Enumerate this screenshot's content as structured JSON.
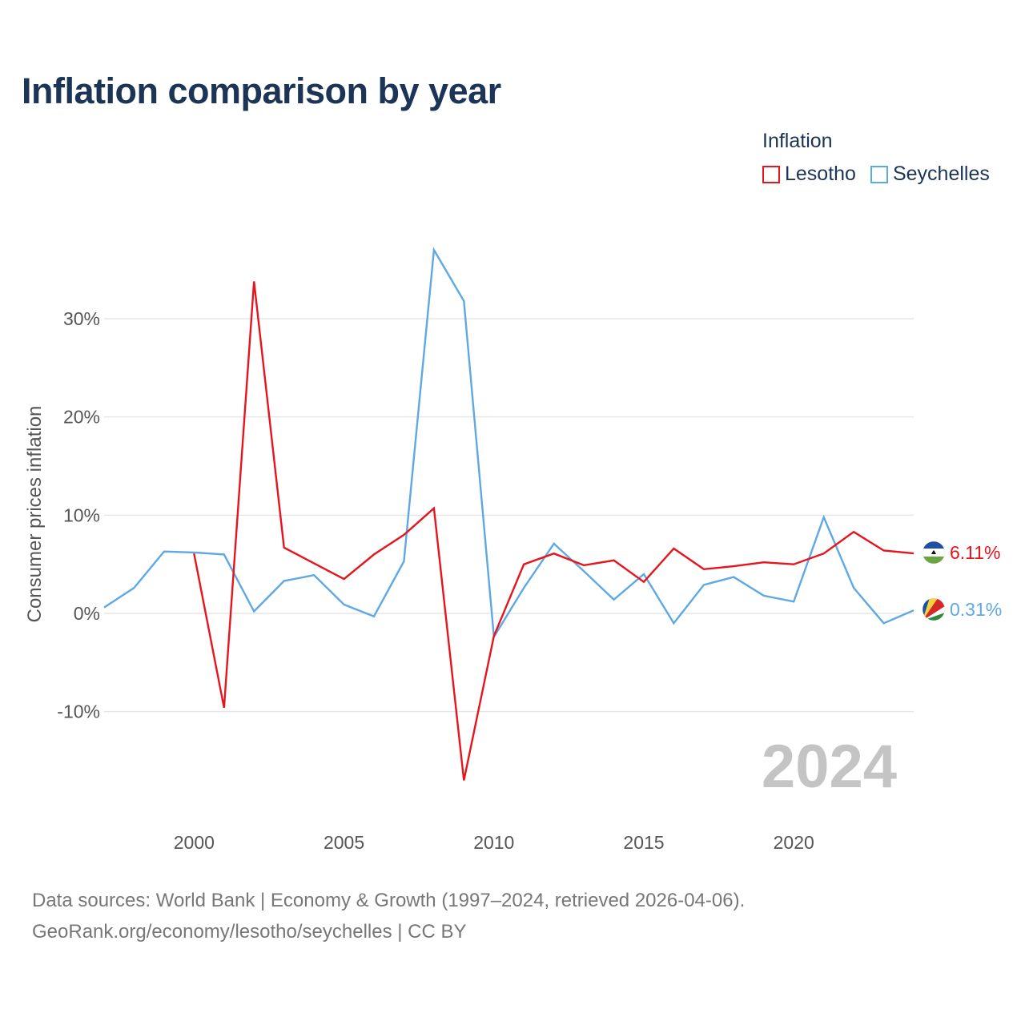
{
  "title": "Inflation comparison by year",
  "legend": {
    "title": "Inflation",
    "items": [
      {
        "label": "Lesotho",
        "color": "#e8141c"
      },
      {
        "label": "Seychelles",
        "color": "#5ea8e4"
      }
    ]
  },
  "watermark_year": "2024",
  "footer": {
    "line1": "Data sources: World Bank | Economy & Growth (1997–2024, retrieved 2026-04-06).",
    "line2": "GeoRank.org/economy/lesotho/seychelles | CC BY"
  },
  "chart_data": {
    "type": "line",
    "title": "Inflation comparison by year",
    "xlabel": "",
    "ylabel": "Consumer prices inflation",
    "xlim": [
      1997,
      2024
    ],
    "ylim": [
      -20,
      38
    ],
    "x_ticks": [
      2000,
      2005,
      2010,
      2015,
      2020
    ],
    "y_ticks": [
      {
        "value": 30,
        "label": "30%"
      },
      {
        "value": 20,
        "label": "20%"
      },
      {
        "value": 10,
        "label": "10%"
      },
      {
        "value": 0,
        "label": "0%"
      },
      {
        "value": -10,
        "label": "-10%"
      }
    ],
    "grid": true,
    "series": [
      {
        "name": "Lesotho",
        "color": "#e8141c",
        "end_label": "6.11%",
        "x": [
          2000,
          2001,
          2002,
          2003,
          2004,
          2005,
          2006,
          2007,
          2008,
          2009,
          2010,
          2011,
          2012,
          2013,
          2014,
          2015,
          2016,
          2017,
          2018,
          2019,
          2020,
          2021,
          2022,
          2023,
          2024
        ],
        "values": [
          6.1,
          -9.6,
          33.8,
          6.7,
          5.1,
          3.5,
          6.0,
          8.0,
          10.7,
          -17.0,
          -2.3,
          5.0,
          6.1,
          4.9,
          5.4,
          3.2,
          6.6,
          4.5,
          4.8,
          5.2,
          5.0,
          6.1,
          8.3,
          6.4,
          6.11
        ]
      },
      {
        "name": "Seychelles",
        "color": "#5ea8e4",
        "end_label": "0.31%",
        "x": [
          1997,
          1998,
          1999,
          2000,
          2001,
          2002,
          2003,
          2004,
          2005,
          2006,
          2007,
          2008,
          2009,
          2010,
          2011,
          2012,
          2013,
          2014,
          2015,
          2016,
          2017,
          2018,
          2019,
          2020,
          2021,
          2022,
          2023,
          2024
        ],
        "values": [
          0.6,
          2.6,
          6.3,
          6.2,
          6.0,
          0.2,
          3.3,
          3.9,
          0.9,
          -0.3,
          5.3,
          37.0,
          31.8,
          -2.4,
          2.6,
          7.1,
          4.3,
          1.4,
          4.0,
          -1.0,
          2.9,
          3.7,
          1.8,
          1.2,
          9.8,
          2.6,
          -1.0,
          0.31
        ]
      }
    ]
  }
}
